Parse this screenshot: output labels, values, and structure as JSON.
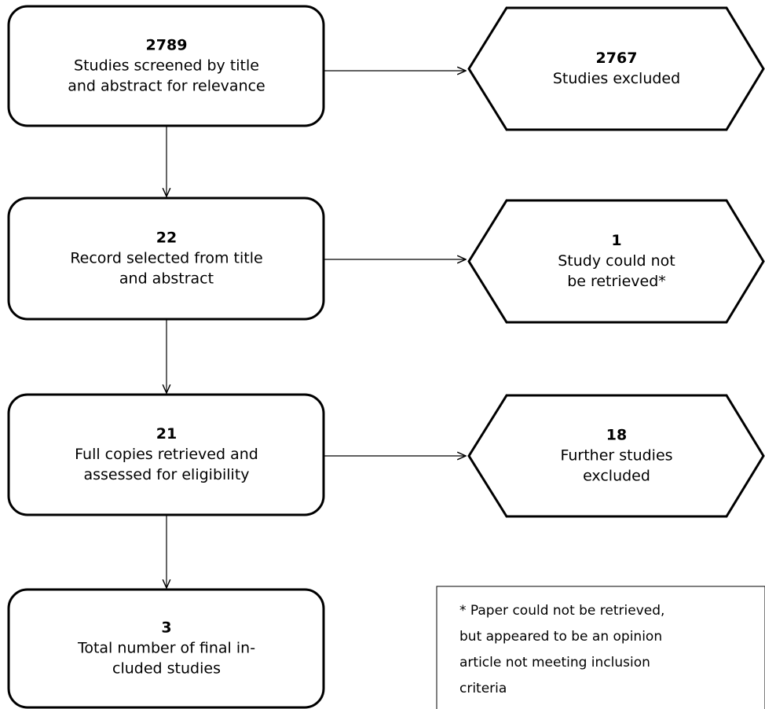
{
  "nodes": [
    {
      "count": 2789,
      "lines": [
        "Studies screened by title",
        "and abstract for relevance"
      ]
    },
    {
      "count": 22,
      "lines": [
        "Record selected from title",
        "and abstract"
      ]
    },
    {
      "count": 21,
      "lines": [
        "Full copies retrieved and",
        "assessed for eligibility"
      ]
    },
    {
      "count": 3,
      "lines": [
        "Total number of final in-",
        "cluded studies"
      ]
    }
  ],
  "excluded": [
    {
      "count": 2767,
      "lines": [
        "Studies excluded"
      ]
    },
    {
      "count": 1,
      "lines": [
        "Study could not",
        "be retrieved*"
      ]
    },
    {
      "count": 18,
      "lines": [
        "Further studies",
        "excluded"
      ]
    }
  ],
  "note": {
    "lines": [
      "* Paper could not be retrieved,",
      "but appeared to be an opinion",
      "article not meeting inclusion",
      "criteria"
    ]
  }
}
